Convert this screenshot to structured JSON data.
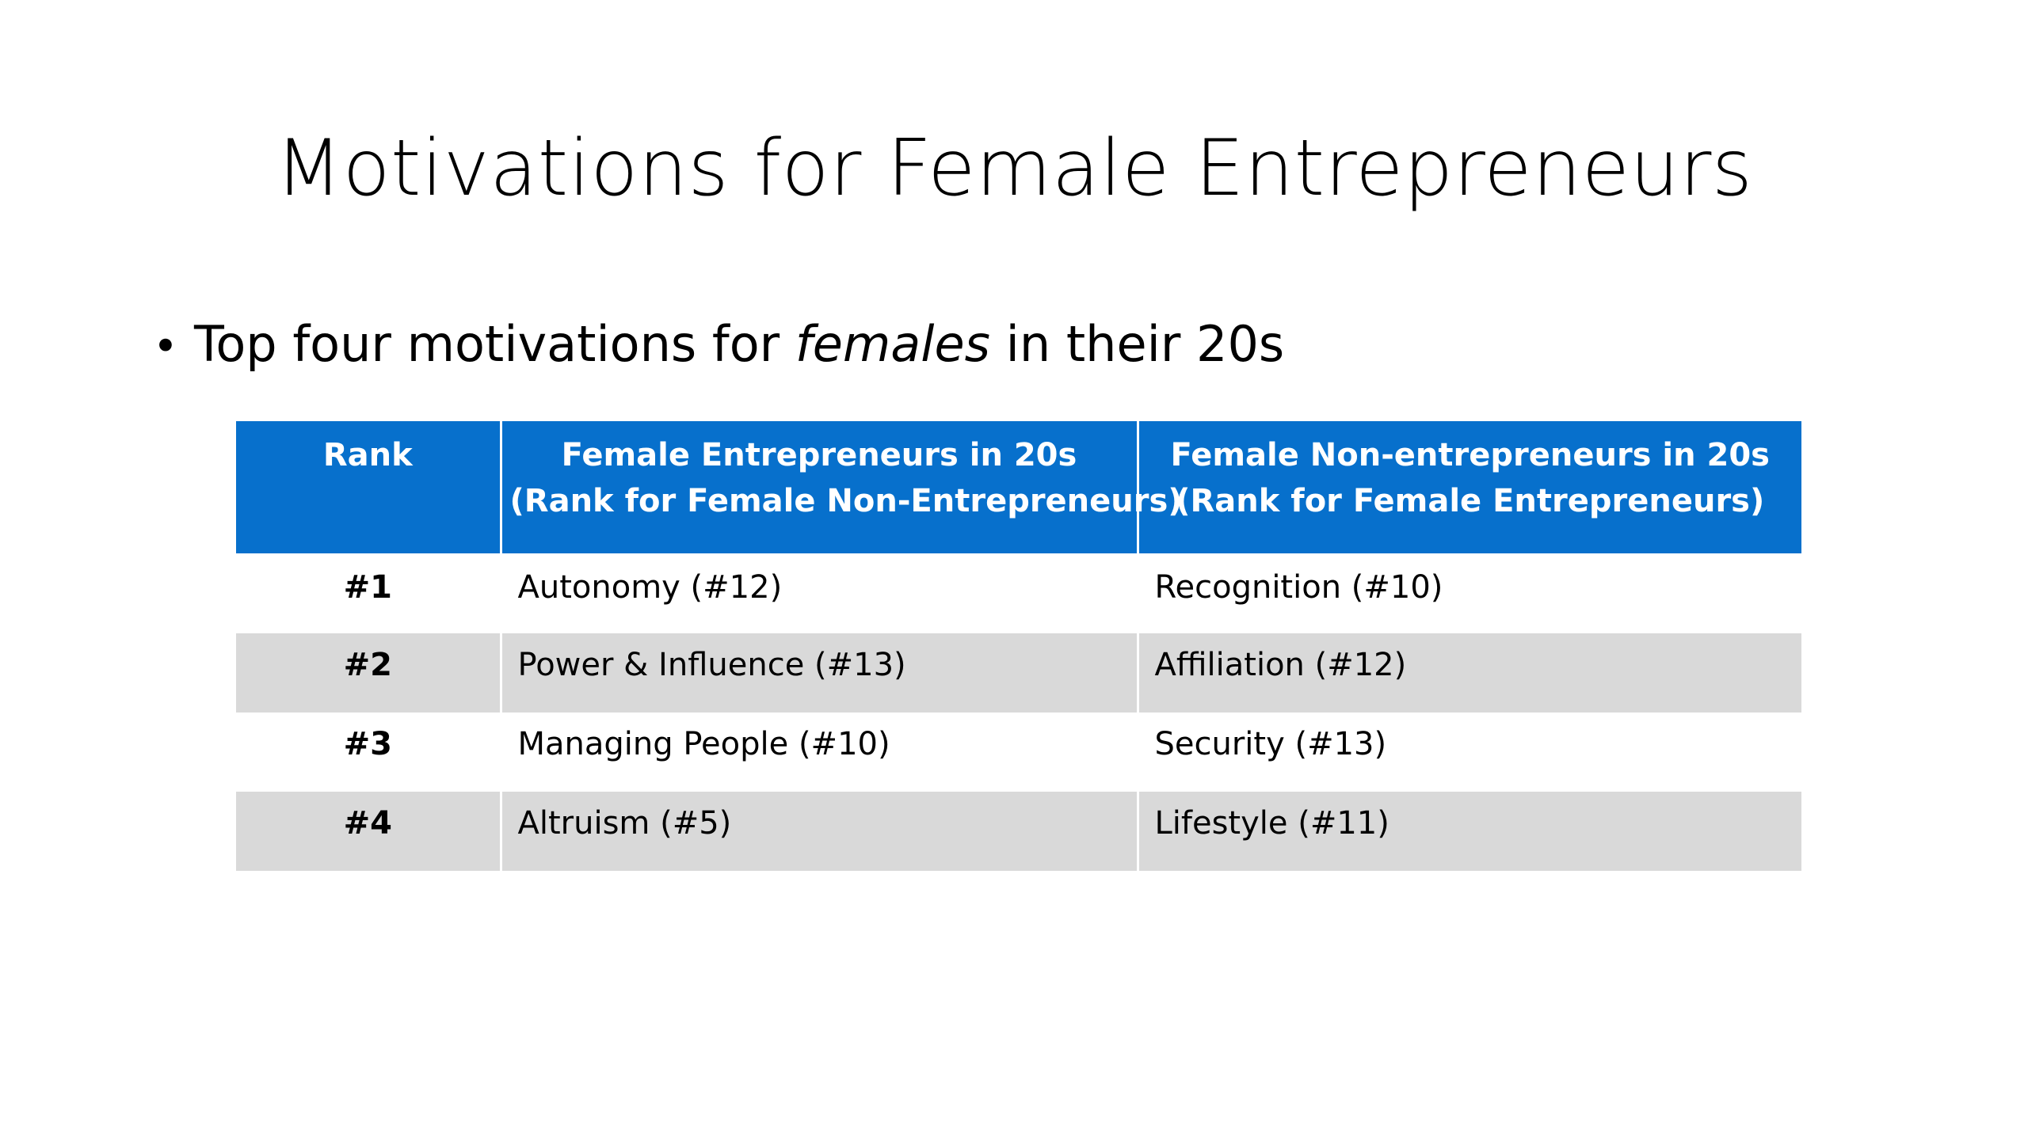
{
  "slide": {
    "title": "Motivations for Female Entrepreneurs",
    "bullet": {
      "symbol": "•",
      "text_before": "Top four motivations for ",
      "text_italic": "females",
      "text_after": " in their 20s"
    }
  },
  "table": {
    "header_color": "#0770cc",
    "stripe_color": "#d9d9d9",
    "headers": {
      "rank": "Rank",
      "entrepreneurs_line1": "Female Entrepreneurs in 20s",
      "entrepreneurs_line2": "(Rank for Female Non-Entrepreneurs)",
      "non_entrepreneurs_line1": "Female Non-entrepreneurs in 20s",
      "non_entrepreneurs_line2": "(Rank for Female Entrepreneurs)"
    },
    "rows": [
      {
        "rank": "#1",
        "entrepreneurs": "Autonomy (#12)",
        "non_entrepreneurs": "Recognition (#10)"
      },
      {
        "rank": "#2",
        "entrepreneurs": "Power & Influence (#13)",
        "non_entrepreneurs": "Affiliation (#12)"
      },
      {
        "rank": "#3",
        "entrepreneurs": "Managing People (#10)",
        "non_entrepreneurs": "Security  (#13)"
      },
      {
        "rank": "#4",
        "entrepreneurs": "Altruism (#5)",
        "non_entrepreneurs": "Lifestyle (#11)"
      }
    ]
  }
}
